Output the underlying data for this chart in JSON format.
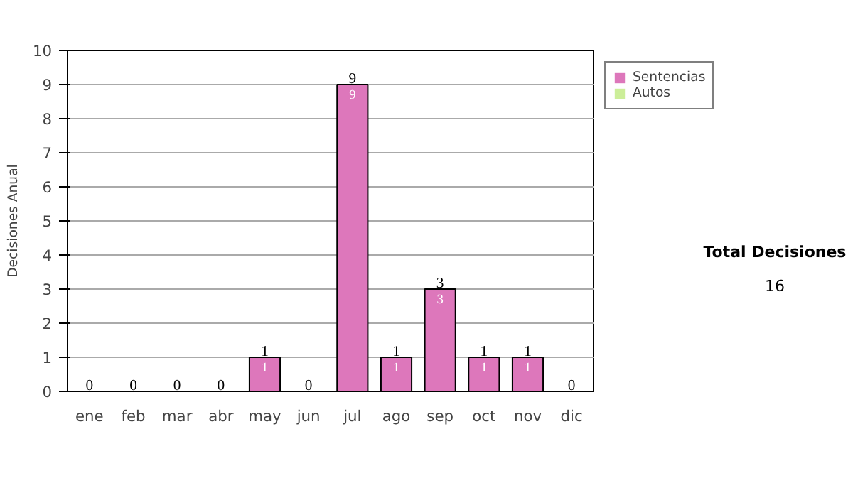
{
  "chart_data": {
    "type": "bar",
    "stacked": true,
    "ylabel": "Decisiones Anual",
    "categories": [
      "ene",
      "feb",
      "mar",
      "abr",
      "may",
      "jun",
      "jul",
      "ago",
      "sep",
      "oct",
      "nov",
      "dic"
    ],
    "series": [
      {
        "name": "Sentencias",
        "color": "#dd77bb",
        "values": [
          0,
          0,
          0,
          0,
          1,
          0,
          9,
          1,
          3,
          1,
          1,
          0
        ],
        "value_labels": [
          null,
          null,
          null,
          null,
          "1",
          null,
          "9",
          "1",
          "3",
          "1",
          "1",
          null
        ]
      },
      {
        "name": "Autos",
        "color": "#ccee99",
        "values": [
          0,
          0,
          0,
          0,
          0,
          0,
          0,
          0,
          0,
          0,
          0,
          0
        ]
      }
    ],
    "totals": [
      "0",
      "0",
      "0",
      "0",
      "1",
      "0",
      "9",
      "1",
      "3",
      "1",
      "1",
      "0"
    ],
    "ylim": [
      0,
      10
    ],
    "yticks": [
      0,
      1,
      2,
      3,
      4,
      5,
      6,
      7,
      8,
      9,
      10
    ],
    "grid": "y",
    "legend": "right",
    "annotations": [
      "Total Decisiones",
      "16"
    ]
  }
}
